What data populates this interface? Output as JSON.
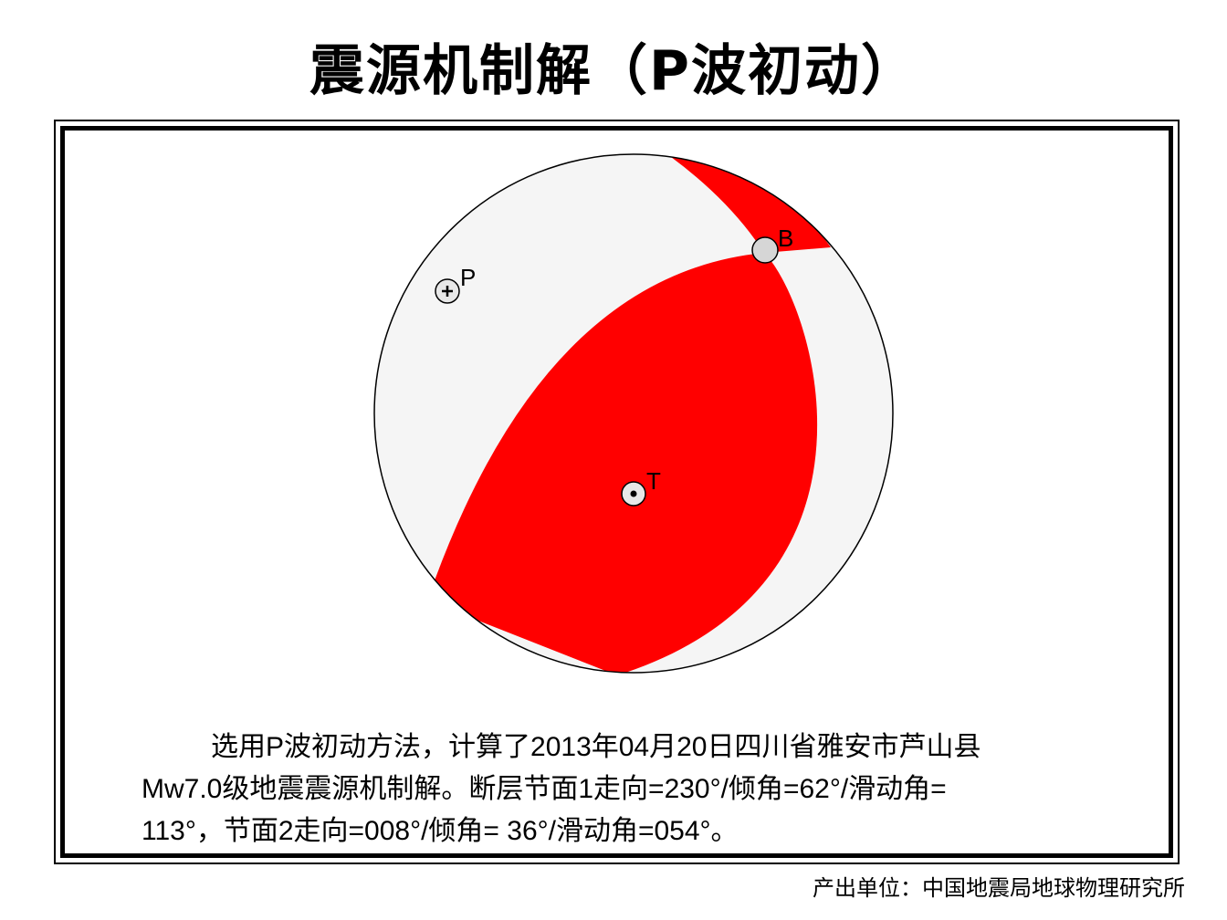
{
  "title": "震源机制解（P波初动）",
  "beachball": {
    "compression_color": "#ff0000",
    "dilatation_color": "#f5f5f5",
    "outline_color": "#000000",
    "axis_labels": {
      "p": "P",
      "t": "T",
      "b": "B"
    },
    "plane1": {
      "strike": 230,
      "dip": 62,
      "rake": 113
    },
    "plane2": {
      "strike": 8,
      "dip": 36,
      "rake": 54
    }
  },
  "description": {
    "line1": "选用P波初动方法，计算了2013年04月20日四川省雅安市芦山县",
    "line2": "Mw7.0级地震震源机制解。断层节面1走向=230°/倾角=62°/滑动角=",
    "line3": "113°，节面2走向=008°/倾角= 36°/滑动角=054°。"
  },
  "credit": "产出单位：中国地震局地球物理研究所"
}
